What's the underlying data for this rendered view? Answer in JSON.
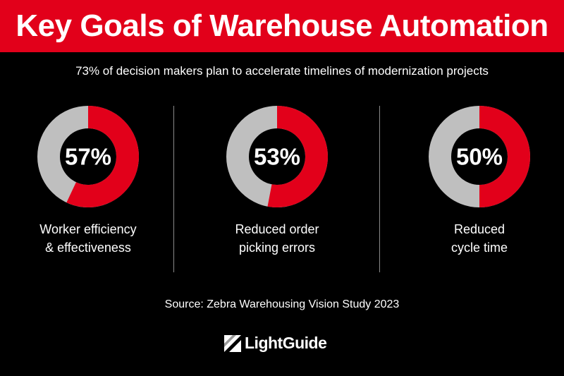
{
  "header": {
    "title": "Key Goals of Warehouse Automation"
  },
  "subtitle": "73% of decision makers plan to accelerate timelines of modernization projects",
  "chart_data": [
    {
      "type": "pie",
      "value": 57,
      "max": 100,
      "label": "57%",
      "caption": [
        "Worker efficiency",
        "& effectiveness"
      ]
    },
    {
      "type": "pie",
      "value": 53,
      "max": 100,
      "label": "53%",
      "caption": [
        "Reduced order",
        "picking errors"
      ]
    },
    {
      "type": "pie",
      "value": 50,
      "max": 100,
      "label": "50%",
      "caption": [
        "Reduced",
        "cycle time"
      ]
    }
  ],
  "source": "Source: Zebra Warehousing Vision Study 2023",
  "logo": {
    "name": "LightGuide",
    "icon": "lightguide-logo-icon"
  },
  "colors": {
    "accent": "#e2001a",
    "track": "#bfbfbf",
    "background": "#000000"
  }
}
